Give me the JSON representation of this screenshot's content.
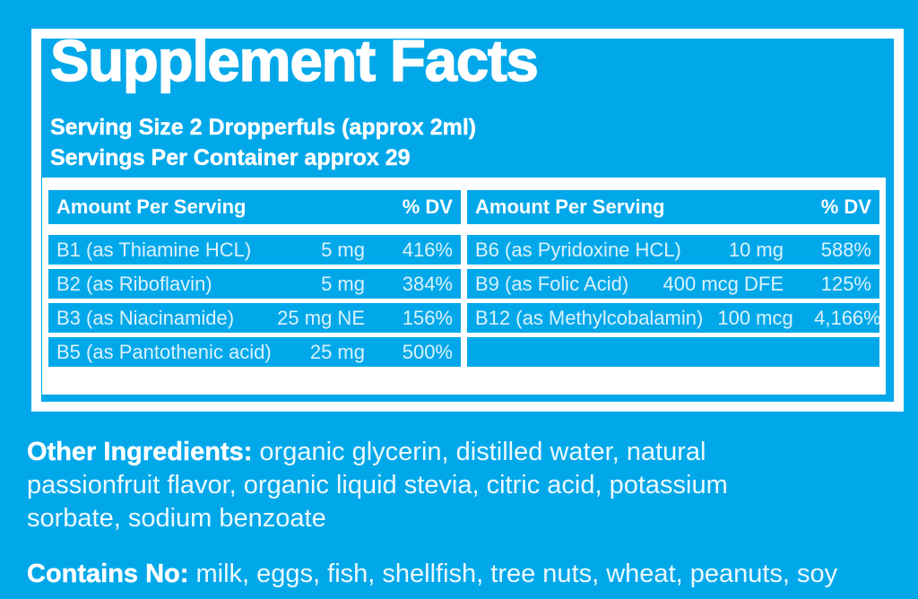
{
  "colors": {
    "background": "#00a8ea",
    "panel_border": "#ffffff",
    "table_bg": "#ffffff",
    "header_text": "#ffffff",
    "row_text": "#dbf2fc",
    "body_text": "#ecf9fe"
  },
  "label": {
    "title": "Supplement Facts",
    "serving_size_line": "Serving Size 2 Dropperfuls (approx 2ml)",
    "servings_per_container_line": "Servings Per Container approx 29"
  },
  "table": {
    "left": {
      "header": {
        "label": "Amount Per Serving",
        "dv": "% DV"
      },
      "rows": [
        {
          "name": "B1 (as Thiamine HCL)",
          "amount": "5 mg",
          "dv": "416%"
        },
        {
          "name": "B2 (as Riboflavin)",
          "amount": "5 mg",
          "dv": "384%"
        },
        {
          "name": "B3 (as Niacinamide)",
          "amount": "25 mg NE",
          "dv": "156%"
        },
        {
          "name": "B5 (as Pantothenic acid)",
          "amount": "25 mg",
          "dv": "500%"
        }
      ]
    },
    "right": {
      "header": {
        "label": "Amount Per Serving",
        "dv": "% DV"
      },
      "rows": [
        {
          "name": "B6 (as Pyridoxine HCL)",
          "amount": "10 mg",
          "dv": "588%"
        },
        {
          "name": "B9 (as Folic Acid)",
          "amount": "400 mcg DFE",
          "dv": "125%"
        },
        {
          "name": "B12 (as Methylcobalamin)",
          "amount": "100 mcg",
          "dv": "4,166%"
        },
        {
          "name": "",
          "amount": "",
          "dv": ""
        }
      ]
    }
  },
  "other_ingredients": {
    "label": "Other Ingredients:",
    "line1_rest": " organic glycerin, distilled water, natural",
    "line2": "passionfruit flavor, organic liquid stevia, citric acid, potassium",
    "line3": "sorbate, sodium benzoate"
  },
  "contains_no": {
    "label": "Contains No:",
    "rest": " milk, eggs, fish, shellfish, tree nuts, wheat, peanuts, soy"
  }
}
